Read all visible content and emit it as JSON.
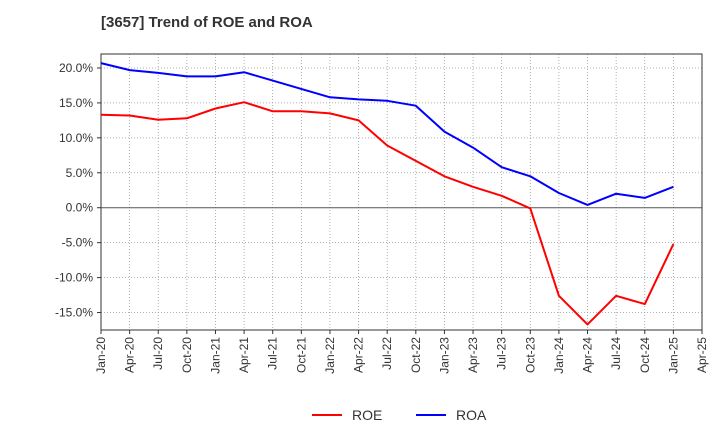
{
  "chart_data": {
    "type": "line",
    "title": "[3657]  Trend of ROE and ROA",
    "xlabel": "",
    "ylabel": "",
    "categories": [
      "Jan-20",
      "Apr-20",
      "Jul-20",
      "Oct-20",
      "Jan-21",
      "Apr-21",
      "Jul-21",
      "Oct-21",
      "Jan-22",
      "Apr-22",
      "Jul-22",
      "Oct-22",
      "Jan-23",
      "Apr-23",
      "Jul-23",
      "Oct-23",
      "Jan-24",
      "Apr-24",
      "Jul-24",
      "Oct-24",
      "Jan-25",
      "Apr-25"
    ],
    "y_ticks": [
      "20.0%",
      "15.0%",
      "10.0%",
      "5.0%",
      "0.0%",
      "-5.0%",
      "-10.0%",
      "-15.0%"
    ],
    "ylim": [
      -17.5,
      22.0
    ],
    "grid": true,
    "legend_position": "bottom",
    "series": [
      {
        "name": "ROE",
        "color": "#ff0000",
        "values": [
          13.3,
          13.2,
          12.6,
          12.8,
          14.2,
          15.1,
          13.8,
          13.8,
          13.5,
          12.5,
          8.9,
          6.7,
          4.5,
          3.0,
          1.7,
          -0.1,
          -12.6,
          -16.7,
          -12.6,
          -13.8,
          -5.2,
          null
        ]
      },
      {
        "name": "ROA",
        "color": "#0000ff",
        "values": [
          20.7,
          19.7,
          19.3,
          18.8,
          18.8,
          19.4,
          18.2,
          17.0,
          15.8,
          15.5,
          15.3,
          14.6,
          10.9,
          8.6,
          5.8,
          4.5,
          2.1,
          0.4,
          2.0,
          1.4,
          3.0,
          null
        ]
      }
    ]
  }
}
